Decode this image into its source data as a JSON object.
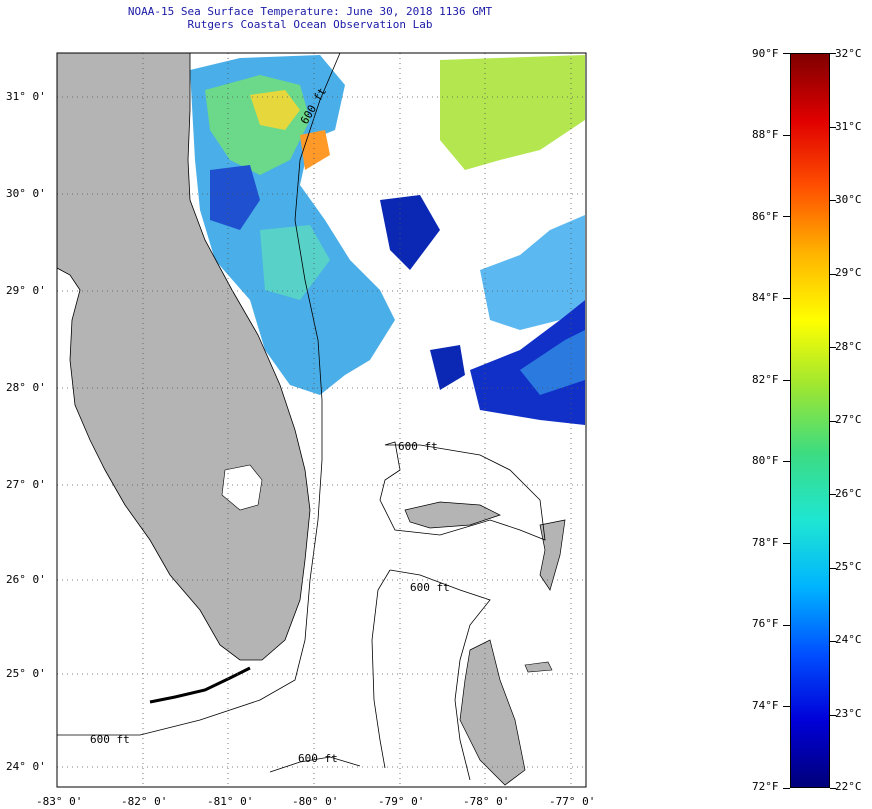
{
  "title": {
    "line1": "NOAA-15 Sea Surface Temperature:  June 30, 2018 1136 GMT",
    "line2": "Rutgers Coastal Ocean Observation Lab"
  },
  "map": {
    "lat_labels": [
      "31° 0'",
      "30° 0'",
      "29° 0'",
      "28° 0'",
      "27° 0'",
      "26° 0'",
      "25° 0'",
      "24° 0'"
    ],
    "lon_labels": [
      "-83° 0'",
      "-82° 0'",
      "-81° 0'",
      "-80° 0'",
      "-79° 0'",
      "-78° 0'",
      "-77° 0'"
    ],
    "isobath_labels": [
      "600 ft",
      "600 ft",
      "600 ft",
      "600 ft",
      "600 ft"
    ],
    "land_color": "#b4b4b4",
    "water_color": "#ffffff"
  },
  "colorbar": {
    "fahrenheit_labels": [
      "90°F",
      "88°F",
      "86°F",
      "84°F",
      "82°F",
      "80°F",
      "78°F",
      "76°F",
      "74°F",
      "72°F"
    ],
    "celsius_labels": [
      "32°C",
      "31°C",
      "30°C",
      "29°C",
      "28°C",
      "27°C",
      "26°C",
      "25°C",
      "24°C",
      "23°C",
      "22°C"
    ],
    "range_f": [
      72,
      90
    ],
    "range_c": [
      22,
      32
    ],
    "colors": [
      "#00007a",
      "#0000d8",
      "#0050ff",
      "#00b4ff",
      "#1ee6d2",
      "#3cdc82",
      "#9ce632",
      "#ffff00",
      "#ffb400",
      "#ff5000",
      "#e00000",
      "#800000"
    ]
  }
}
